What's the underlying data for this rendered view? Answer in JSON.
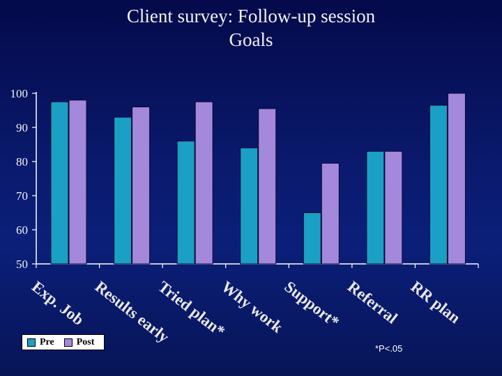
{
  "title": {
    "line1": "Client survey: Follow-up session",
    "line2": "Goals"
  },
  "footnote": "*P<.05",
  "colors": {
    "pre": "#1aa0c4",
    "post": "#a388dc",
    "axis": "#ffffff",
    "text": "#f2f2f2"
  },
  "chart_data": {
    "type": "bar",
    "categories": [
      "Exp. Job",
      "Results early",
      "Tried plan*",
      "Why work",
      "Support*",
      "Referral",
      "RR plan"
    ],
    "series": [
      {
        "name": "Pre",
        "values": [
          97.5,
          93,
          86,
          84,
          65,
          83,
          96.5
        ]
      },
      {
        "name": "Post",
        "values": [
          98,
          96,
          97.5,
          95.5,
          79.5,
          83,
          100
        ]
      }
    ],
    "ylim": [
      50,
      100
    ],
    "yticks": [
      50,
      60,
      70,
      80,
      90,
      100
    ],
    "grid": false,
    "legend": "bottom-left",
    "xlabel": "",
    "ylabel": ""
  }
}
